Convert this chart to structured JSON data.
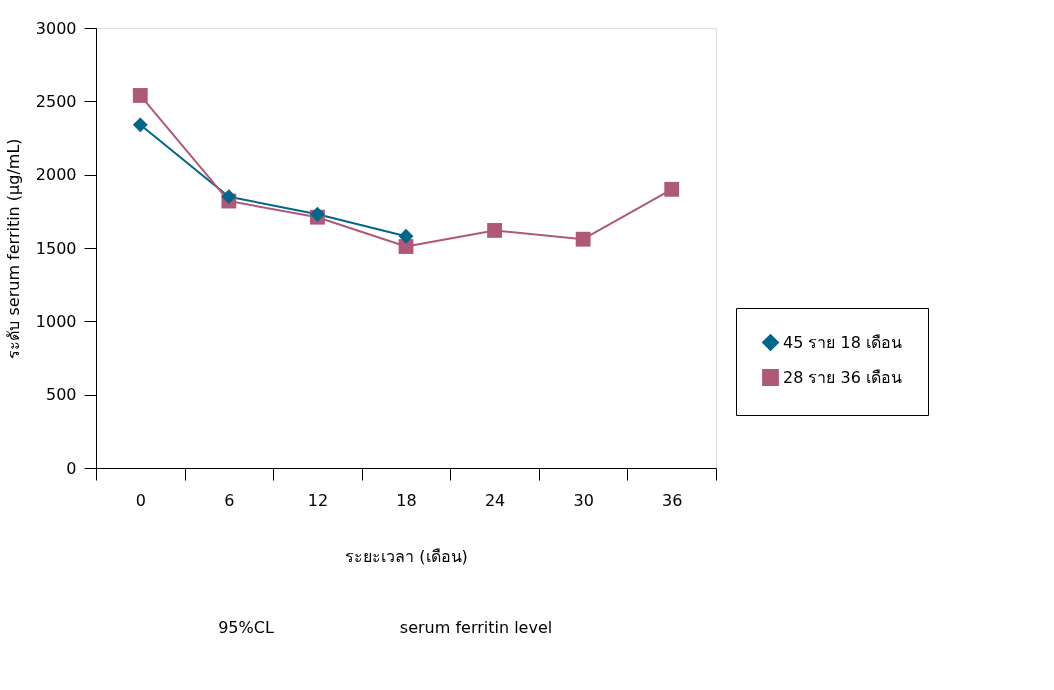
{
  "chart_data": {
    "type": "line",
    "xlabel": "ระยะเวลา (เดือน)",
    "ylabel": "ระดับ serum ferritin (µg/mL)",
    "categories": [
      "0",
      "6",
      "12",
      "18",
      "24",
      "30",
      "36"
    ],
    "series": [
      {
        "name": "45 ราย 18 เดือน",
        "color": "#00668a",
        "marker": "diamond",
        "values": [
          2340,
          1850,
          1730,
          1580,
          null,
          null,
          null
        ]
      },
      {
        "name": "28 ราย 36 เดือน",
        "color": "#b05878",
        "marker": "square",
        "values": [
          2540,
          1820,
          1710,
          1510,
          1620,
          1560,
          1900
        ]
      }
    ],
    "ylim": [
      0,
      3000
    ],
    "yticks": [
      0,
      500,
      1000,
      1500,
      2000,
      2500,
      3000
    ],
    "grid": false,
    "legend": "right",
    "line_style": "solid",
    "annotations": [
      "95%CL",
      "serum ferritin level"
    ]
  }
}
